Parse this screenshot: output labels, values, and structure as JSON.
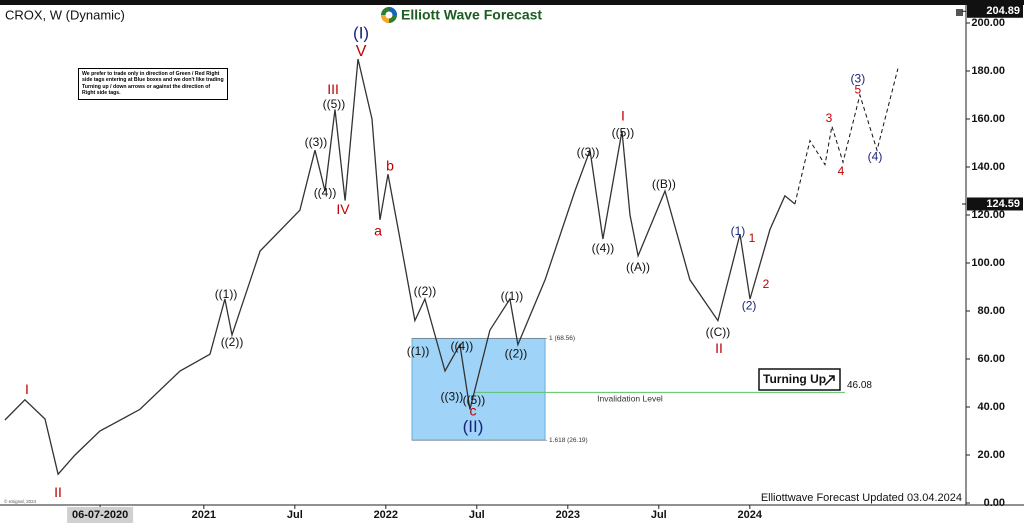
{
  "chart_data": {
    "type": "line",
    "title": "CROX, W (Dynamic)",
    "brand": "Elliott Wave Forecast",
    "footer": "Elliottwave Forecast Updated 03.04.2024",
    "copyright": "© eSignal, 2024",
    "note": "We prefer to trade only in direction of Green / Red Right side tags entering at Blue boxes and we don't like trading Turning up / down arrows or against the direction of Right side tags.",
    "badge": "Turning Up",
    "color": "#333333",
    "xlim": [
      2019.88,
      2025.188
    ],
    "xticks": [
      {
        "value": 2020.43,
        "label": "06-07-2020"
      },
      2021,
      {
        "value": 2021.5,
        "label": "Jul"
      },
      2022,
      {
        "value": 2022.5,
        "label": "Jul"
      },
      2023,
      {
        "value": 2023.5,
        "label": "Jul"
      },
      2024
    ],
    "ylim": [
      0,
      206.5
    ],
    "yticks": [
      {
        "value": 0,
        "label": "0.00"
      },
      {
        "value": 20,
        "label": "20.00"
      },
      {
        "value": 40,
        "label": "40.00"
      },
      {
        "value": 60,
        "label": "60.00"
      },
      {
        "value": 80,
        "label": "80.00"
      },
      {
        "value": 100,
        "label": "100.00"
      },
      {
        "value": 120,
        "label": "120.00"
      },
      {
        "value": 140,
        "label": "140.00"
      },
      {
        "value": 160,
        "label": "160.00"
      },
      {
        "value": 180,
        "label": "180.00"
      },
      {
        "value": 200,
        "label": "200.00"
      }
    ],
    "x": [
      2019.907,
      2020.017,
      2020.127,
      2020.199,
      2020.292,
      2020.429,
      2020.649,
      2020.869,
      2021.034,
      2021.116,
      2021.155,
      2021.309,
      2021.528,
      2021.611,
      2021.666,
      2021.721,
      2021.776,
      2021.847,
      2021.924,
      2021.968,
      2022.012,
      2022.078,
      2022.16,
      2022.215,
      2022.325,
      2022.407,
      2022.462,
      2022.572,
      2022.682,
      2022.726,
      2022.875,
      2023.039,
      2023.122,
      2023.193,
      2023.298,
      2023.342,
      2023.386,
      2023.534,
      2023.671,
      2023.825,
      2023.946,
      2024.001,
      2024.111,
      2024.193,
      2024.248
    ],
    "values": [
      34.6,
      43,
      35,
      12,
      20,
      30,
      39,
      55,
      62,
      85,
      70,
      105,
      122,
      147,
      130,
      164,
      126,
      185,
      160,
      118,
      137,
      110,
      76,
      85,
      55,
      66,
      39,
      72,
      85,
      66,
      93,
      130,
      147,
      110,
      155,
      120,
      103,
      130,
      93,
      76,
      112,
      85,
      114,
      128,
      124.59
    ],
    "projection": {
      "color": "#111111",
      "x": [
        2024.248,
        2024.33,
        2024.413,
        2024.451,
        2024.512,
        2024.605,
        2024.699,
        2024.814
      ],
      "values": [
        124.59,
        151,
        141,
        157,
        142,
        170,
        147,
        181
      ]
    },
    "zone": {
      "color": "#9fd3f7",
      "xlim": [
        2022.144,
        2022.875
      ],
      "ylim": [
        26.19,
        68.56
      ]
    },
    "fib_levels": [
      {
        "value": 68.56,
        "label": "1 (68.56)"
      },
      {
        "value": 26.19,
        "label": "1.618 (26.19)"
      }
    ],
    "invalidation": {
      "value": 46.08,
      "label": "46.08",
      "text": "Invalidation Level",
      "x": [
        2022.49,
        2024.523
      ],
      "color": "#59c36a"
    },
    "price_markers": [
      {
        "value": 204.89,
        "label": "204.89"
      },
      {
        "value": 124.59,
        "label": "124.59"
      }
    ],
    "annotations": [
      {
        "text": "I",
        "x": 2020.028,
        "y": 47,
        "color": "#c00000",
        "size": 14
      },
      {
        "text": "II",
        "x": 2020.199,
        "y": 4,
        "color": "#c00000",
        "size": 14
      },
      {
        "text": "((1))",
        "x": 2021.122,
        "y": 86.7,
        "color": "#111111",
        "size": 12
      },
      {
        "text": "((2))",
        "x": 2021.155,
        "y": 66.7,
        "color": "#111111",
        "size": 12
      },
      {
        "text": "((3))",
        "x": 2021.616,
        "y": 150,
        "color": "#111111",
        "size": 12
      },
      {
        "text": "((4))",
        "x": 2021.666,
        "y": 129,
        "color": "#111111",
        "size": 12
      },
      {
        "text": "((5))",
        "x": 2021.715,
        "y": 166,
        "color": "#111111",
        "size": 12
      },
      {
        "text": "III",
        "x": 2021.71,
        "y": 172,
        "color": "#c00000",
        "size": 14
      },
      {
        "text": "IV",
        "x": 2021.765,
        "y": 122,
        "color": "#c00000",
        "size": 14
      },
      {
        "text": "V",
        "x": 2021.864,
        "y": 188,
        "color": "#c00000",
        "size": 16
      },
      {
        "text": "(I)",
        "x": 2021.864,
        "y": 195.5,
        "color": "#1a237e",
        "size": 17
      },
      {
        "text": "a",
        "x": 2021.957,
        "y": 113,
        "color": "#c00000",
        "size": 14
      },
      {
        "text": "b",
        "x": 2022.023,
        "y": 140,
        "color": "#c00000",
        "size": 14
      },
      {
        "text": "((1))",
        "x": 2022.177,
        "y": 63,
        "color": "#111111",
        "size": 12
      },
      {
        "text": "((2))",
        "x": 2022.215,
        "y": 88,
        "color": "#111111",
        "size": 12
      },
      {
        "text": "((3))",
        "x": 2022.363,
        "y": 44,
        "color": "#111111",
        "size": 12
      },
      {
        "text": "((4))",
        "x": 2022.418,
        "y": 65,
        "color": "#111111",
        "size": 12
      },
      {
        "text": "((5))",
        "x": 2022.484,
        "y": 42.5,
        "color": "#111111",
        "size": 12
      },
      {
        "text": "c",
        "x": 2022.479,
        "y": 38,
        "color": "#c00000",
        "size": 14
      },
      {
        "text": "(II)",
        "x": 2022.479,
        "y": 31.5,
        "color": "#1a237e",
        "size": 17
      },
      {
        "text": "((1))",
        "x": 2022.693,
        "y": 86,
        "color": "#111111",
        "size": 12
      },
      {
        "text": "((2))",
        "x": 2022.715,
        "y": 62,
        "color": "#111111",
        "size": 12
      },
      {
        "text": "((3))",
        "x": 2023.111,
        "y": 146,
        "color": "#111111",
        "size": 12
      },
      {
        "text": "((4))",
        "x": 2023.193,
        "y": 106,
        "color": "#111111",
        "size": 12
      },
      {
        "text": "((5))",
        "x": 2023.303,
        "y": 154,
        "color": "#111111",
        "size": 12
      },
      {
        "text": "I",
        "x": 2023.303,
        "y": 161,
        "color": "#c00000",
        "size": 14
      },
      {
        "text": "((A))",
        "x": 2023.386,
        "y": 98,
        "color": "#111111",
        "size": 12
      },
      {
        "text": "((B))",
        "x": 2023.528,
        "y": 132.5,
        "color": "#111111",
        "size": 12
      },
      {
        "text": "((C))",
        "x": 2023.825,
        "y": 71,
        "color": "#111111",
        "size": 12
      },
      {
        "text": "II",
        "x": 2023.831,
        "y": 64,
        "color": "#c00000",
        "size": 14
      },
      {
        "text": "(1)",
        "x": 2023.935,
        "y": 113,
        "color": "#1a237e",
        "size": 12
      },
      {
        "text": "1",
        "x": 2024.012,
        "y": 110,
        "color": "#c00000",
        "size": 12
      },
      {
        "text": "(2)",
        "x": 2023.996,
        "y": 82,
        "color": "#1a237e",
        "size": 12
      },
      {
        "text": "2",
        "x": 2024.089,
        "y": 91,
        "color": "#c00000",
        "size": 12
      },
      {
        "text": "3",
        "x": 2024.435,
        "y": 160,
        "color": "#c00000",
        "size": 12
      },
      {
        "text": "4",
        "x": 2024.501,
        "y": 138,
        "color": "#c00000",
        "size": 12
      },
      {
        "text": "(3)",
        "x": 2024.594,
        "y": 176.5,
        "color": "#1a237e",
        "size": 12
      },
      {
        "text": "5",
        "x": 2024.594,
        "y": 172,
        "color": "#c00000",
        "size": 12
      },
      {
        "text": "(4)",
        "x": 2024.688,
        "y": 144,
        "color": "#1a237e",
        "size": 12
      }
    ]
  }
}
